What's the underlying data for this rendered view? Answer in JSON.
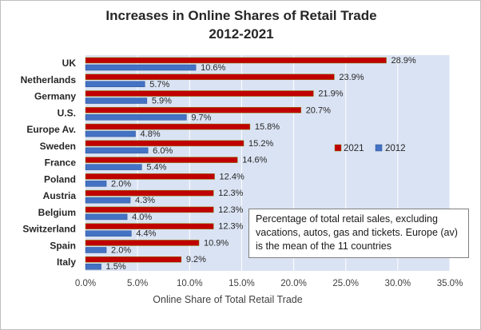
{
  "chart_data": {
    "type": "bar",
    "orientation": "horizontal",
    "title": "Increases in Online Shares of Retail Trade",
    "subtitle": "2012-2021",
    "xlabel": "Online Share of Total Retail Trade",
    "ylabel": "",
    "xlim": [
      0,
      35
    ],
    "x_ticks": [
      "0.0%",
      "5.0%",
      "10.0%",
      "15.0%",
      "20.0%",
      "25.0%",
      "30.0%",
      "35.0%"
    ],
    "categories": [
      "UK",
      "Netherlands",
      "Germany",
      "U.S.",
      "Europe Av.",
      "Sweden",
      "France",
      "Poland",
      "Austria",
      "Belgium",
      "Switzerland",
      "Spain",
      "Italy"
    ],
    "series": [
      {
        "name": "2021",
        "color": "#c00000",
        "values": [
          28.9,
          23.9,
          21.9,
          20.7,
          15.8,
          15.2,
          14.6,
          12.4,
          12.3,
          12.3,
          12.3,
          10.9,
          9.2
        ],
        "labels": [
          "28.9%",
          "23.9%",
          "21.9%",
          "20.7%",
          "15.8%",
          "15.2%",
          "14.6%",
          "12.4%",
          "12.3%",
          "12.3%",
          "12.3%",
          "10.9%",
          "9.2%"
        ]
      },
      {
        "name": "2012",
        "color": "#4472c4",
        "values": [
          10.6,
          5.7,
          5.9,
          9.7,
          4.8,
          6.0,
          5.4,
          2.0,
          4.3,
          4.0,
          4.4,
          2.0,
          1.5
        ],
        "labels": [
          "10.6%",
          "5.7%",
          "5.9%",
          "9.7%",
          "4.8%",
          "6.0%",
          "5.4%",
          "2.0%",
          "4.3%",
          "4.0%",
          "4.4%",
          "2.0%",
          "1.5%"
        ]
      }
    ],
    "legend_position": "right",
    "grid": true,
    "plot_background": "#dae3f3",
    "annotation": "Percentage of total retail sales, excluding vacations, autos, gas and tickets. Europe (av) is the mean of the 11 countries"
  }
}
